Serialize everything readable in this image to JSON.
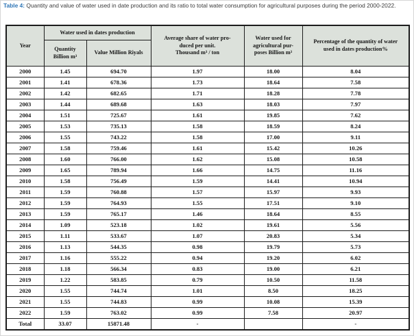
{
  "caption": {
    "label": "Table 4:",
    "text": " Quantity and value of water used in date production and its ratio to total water consumption for agricultural purposes during the period 2000-2022."
  },
  "table": {
    "headers": {
      "year": "Year",
      "water_group": "Water used in dates production",
      "quantity": "Quantity\nBillion m³",
      "value": "Value Million Riyals",
      "avg_share": "Average share of water pro-\nduced per unit.\nThousand m³ / ton",
      "agri_water": "Water used for\nagricultural pur-\nposes Billion m³",
      "percentage": "Percentage of the quantity of water\nused in dates production%"
    },
    "rows": [
      [
        "2000",
        "1.45",
        "694.70",
        "1.97",
        "18.00",
        "8.04"
      ],
      [
        "2001",
        "1.41",
        "678.36",
        "1.73",
        "18.64",
        "7.58"
      ],
      [
        "2002",
        "1.42",
        "682.65",
        "1.71",
        "18.28",
        "7.78"
      ],
      [
        "2003",
        "1.44",
        "689.68",
        "1.63",
        "18.03",
        "7.97"
      ],
      [
        "2004",
        "1.51",
        "725.67",
        "1.61",
        "19.85",
        "7.62"
      ],
      [
        "2005",
        "1.53",
        "735.13",
        "1.58",
        "18.59",
        "8.24"
      ],
      [
        "2006",
        "1.55",
        "743.22",
        "1.58",
        "17.00",
        "9.11"
      ],
      [
        "2007",
        "1.58",
        "759.46",
        "1.61",
        "15.42",
        "10.26"
      ],
      [
        "2008",
        "1.60",
        "766.00",
        "1.62",
        "15.08",
        "10.58"
      ],
      [
        "2009",
        "1.65",
        "789.94",
        "1.66",
        "14.75",
        "11.16"
      ],
      [
        "2010",
        "1.58",
        "756.49",
        "1.59",
        "14.41",
        "10.94"
      ],
      [
        "2011",
        "1.59",
        "760.88",
        "1.57",
        "15.97",
        "9.93"
      ],
      [
        "2012",
        "1.59",
        "764.93",
        "1.55",
        "17.51",
        "9.10"
      ],
      [
        "2013",
        "1.59",
        "765.17",
        "1.46",
        "18.64",
        "8.55"
      ],
      [
        "2014",
        "1.09",
        "523.18",
        "1.02",
        "19.61",
        "5.56"
      ],
      [
        "2015",
        "1.11",
        "533.67",
        "1.07",
        "20.83",
        "5.34"
      ],
      [
        "2016",
        "1.13",
        "544.35",
        "0.98",
        "19.79",
        "5.73"
      ],
      [
        "2017",
        "1.16",
        "555.22",
        "0.94",
        "19.20",
        "6.02"
      ],
      [
        "2018",
        "1.18",
        "566.34",
        "0.83",
        "19.00",
        "6.21"
      ],
      [
        "2019",
        "1.22",
        "583.85",
        "0.79",
        "10.50",
        "11.58"
      ],
      [
        "2020",
        "1.55",
        "744.74",
        "1.01",
        "8.50",
        "18.25"
      ],
      [
        "2021",
        "1.55",
        "744.83",
        "0.99",
        "10.08",
        "15.39"
      ],
      [
        "2022",
        "1.59",
        "763.02",
        "0.99",
        "7.58",
        "20.97"
      ]
    ],
    "total_row": [
      "Total",
      "33.07",
      "15871.48",
      "-",
      "",
      "-"
    ]
  },
  "colors": {
    "caption_accent": "#2e75b6",
    "header_bg": "#dce1db",
    "border": "#1c1c1c",
    "text": "#171717"
  }
}
